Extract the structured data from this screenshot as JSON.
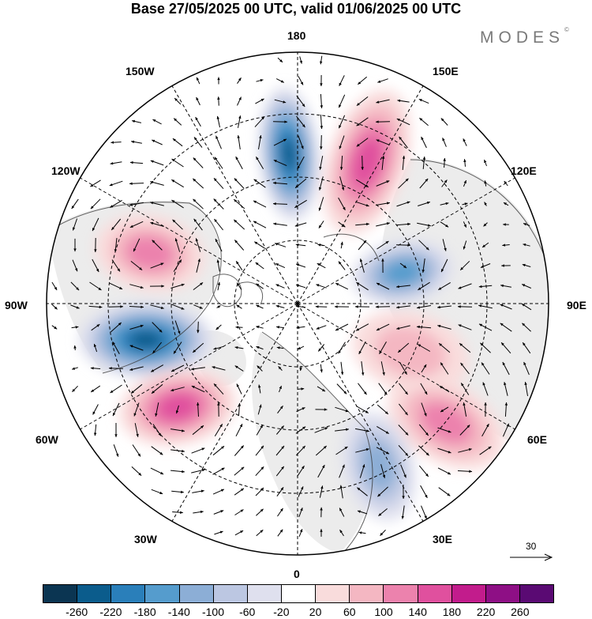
{
  "title": "Base 27/05/2025 00 UTC, valid 01/06/2025 00 UTC",
  "brand": {
    "name": "MODES",
    "mark": "©"
  },
  "map": {
    "projection": "north-polar-stereographic",
    "lon_labels": {
      "top": "180",
      "top_left": "150W",
      "top_right": "150E",
      "upper_left": "120W",
      "upper_right": "120E",
      "left": "90W",
      "right": "90E",
      "lower_left": "60W",
      "lower_right": "60E",
      "bottom_left": "30W",
      "bottom_right": "30E",
      "bottom": "0"
    },
    "anomaly_centers": [
      {
        "name": "negative-anomaly-180",
        "sign": "negative",
        "level": -240
      },
      {
        "name": "positive-anomaly-150e",
        "sign": "positive",
        "level": 180
      },
      {
        "name": "positive-anomaly-120w",
        "sign": "positive",
        "level": 140
      },
      {
        "name": "negative-anomaly-90w",
        "sign": "negative",
        "level": -240
      },
      {
        "name": "positive-anomaly-60w",
        "sign": "positive",
        "level": 160
      },
      {
        "name": "negative-anomaly-110e",
        "sign": "negative",
        "level": -180
      },
      {
        "name": "positive-anomaly-90e",
        "sign": "positive",
        "level": 100
      },
      {
        "name": "positive-anomaly-60e",
        "sign": "positive",
        "level": 140
      },
      {
        "name": "negative-anomaly-30e",
        "sign": "negative",
        "level": -140
      }
    ]
  },
  "wind_vector_scale": {
    "label": "30"
  },
  "colorbar": {
    "colors": [
      "#0b3552",
      "#0b5c8c",
      "#2a7fba",
      "#559ccd",
      "#8caed6",
      "#bcc7e2",
      "#dfe0ee",
      "#ffffff",
      "#f9dcdc",
      "#f4b7c2",
      "#ec82ad",
      "#e0509e",
      "#c21c8c",
      "#8e0f85",
      "#5a0a73"
    ],
    "tick_labels": [
      "-260",
      "-220",
      "-180",
      "-140",
      "-100",
      "-60",
      "-20",
      "20",
      "60",
      "100",
      "140",
      "180",
      "220",
      "260"
    ]
  }
}
